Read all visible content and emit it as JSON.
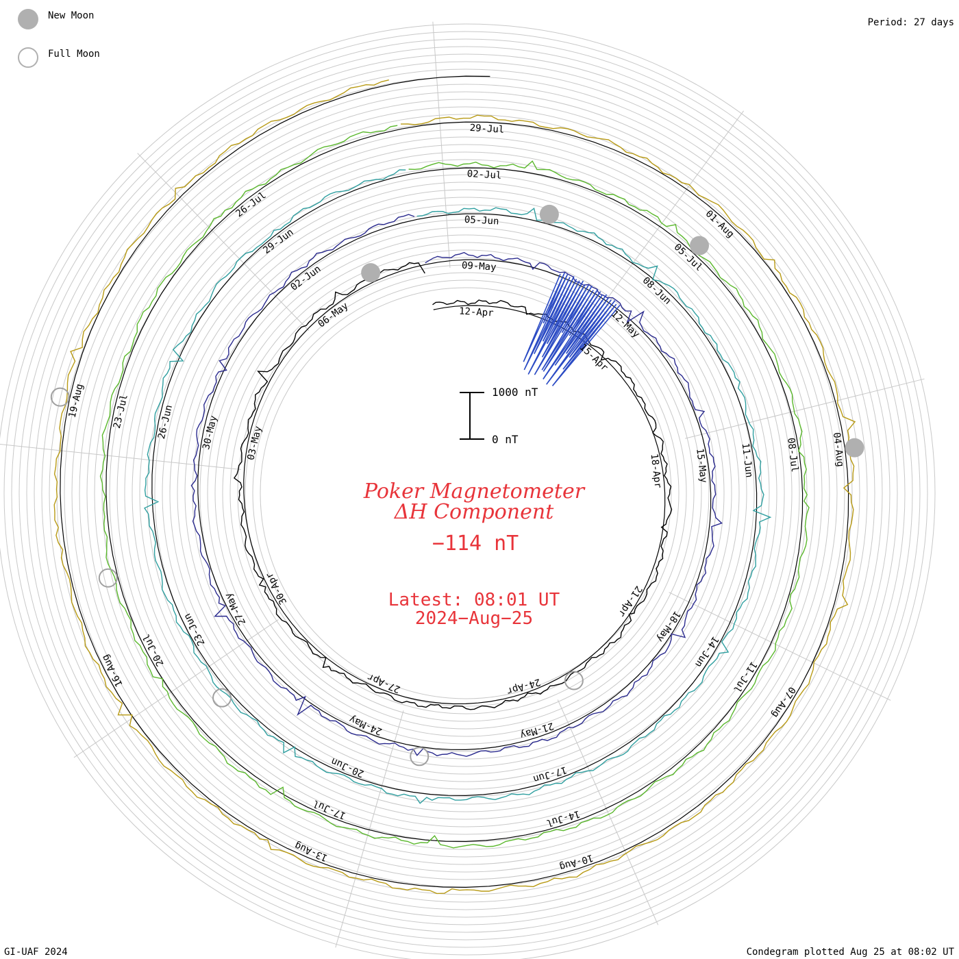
{
  "legend": {
    "new_moon_label": "New Moon",
    "full_moon_label": "Full Moon",
    "period": "Period: 27 days"
  },
  "title": {
    "line1": "Poker Magnetometer",
    "line2": "ΔH Component",
    "current_value": "−114 nT",
    "latest": "Latest: 08:01 UT",
    "date": "2024−Aug−25"
  },
  "scale_bar": {
    "top_label": "1000 nT",
    "bottom_label": "0 nT"
  },
  "footer": {
    "left": "GI-UAF 2024",
    "right": "Condegram plotted Aug 25 at 08:02 UT"
  },
  "chart_data": {
    "type": "line",
    "subtype": "spiral condegram",
    "period_days": 27,
    "title": "Poker Magnetometer ΔH Component",
    "unit": "nT",
    "scale_nT": [
      0,
      1000
    ],
    "start_date": "2024-04-11",
    "end_date": "2024-08-25",
    "latest_value": -114,
    "series": [
      {
        "revolution": 1,
        "color": "#000000",
        "date_labels": [
          "12-Apr",
          "15-Apr",
          "18-Apr",
          "21-Apr",
          "24-Apr",
          "27-Apr",
          "30-Apr",
          "03-May",
          "06-May"
        ]
      },
      {
        "revolution": 2,
        "color": "#2a2a8e",
        "date_labels": [
          "09-May",
          "12-May",
          "15-May",
          "18-May",
          "21-May",
          "24-May",
          "27-May",
          "30-May",
          "02-Jun"
        ]
      },
      {
        "revolution": 3,
        "color": "#2f9fa0",
        "date_labels": [
          "05-Jun",
          "08-Jun",
          "11-Jun",
          "14-Jun",
          "17-Jun",
          "20-Jun",
          "23-Jun",
          "26-Jun",
          "29-Jun"
        ]
      },
      {
        "revolution": 4,
        "color": "#5ab82c",
        "date_labels": [
          "02-Jul",
          "05-Jul",
          "08-Jul",
          "11-Jul",
          "14-Jul",
          "17-Jul",
          "20-Jul",
          "23-Jul",
          "26-Jul"
        ]
      },
      {
        "revolution": 5,
        "color": "#b89a14",
        "date_labels": [
          "29-Jul",
          "01-Aug",
          "04-Aug",
          "07-Aug",
          "10-Aug",
          "13-Aug",
          "16-Aug",
          "19-Aug"
        ]
      }
    ],
    "new_moon_dates": [
      "2024-05-07",
      "2024-06-06",
      "2024-07-05",
      "2024-08-04"
    ],
    "full_moon_dates": [
      "2024-04-23",
      "2024-05-23",
      "2024-06-22",
      "2024-07-21",
      "2024-08-19"
    ]
  }
}
